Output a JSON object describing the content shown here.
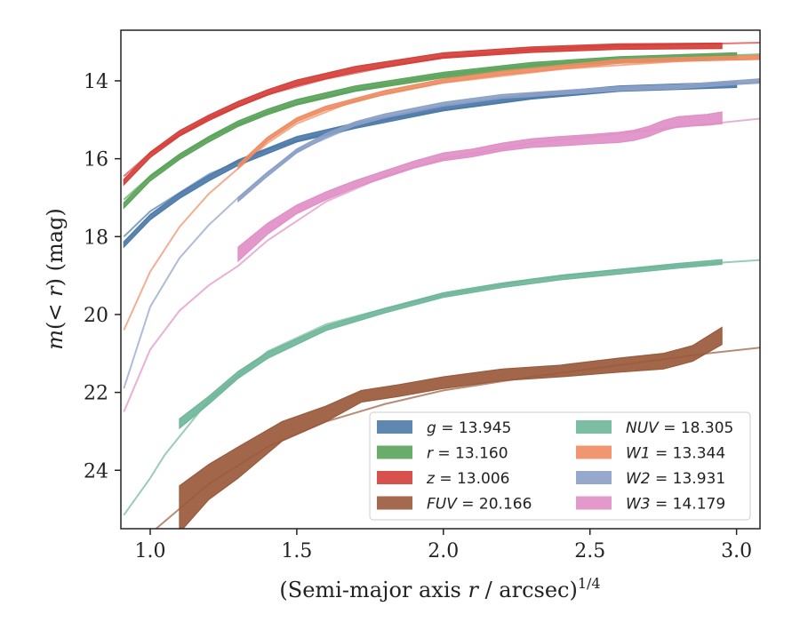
{
  "chart_data": {
    "type": "line",
    "xlabel": "(Semi-major axis r / arcsec)^{1/4}",
    "ylabel": "m(<r) (mag)",
    "xlim": [
      0.9,
      3.08
    ],
    "ylim": [
      25.5,
      12.7
    ],
    "y_inverted": true,
    "x_ticks": [
      "1.0",
      "1.5",
      "2.0",
      "2.5",
      "3.0"
    ],
    "y_ticks": [
      "14",
      "16",
      "18",
      "20",
      "22",
      "24"
    ],
    "legend_position": "lower-right",
    "series": [
      {
        "name": "g = 13.945",
        "italic_name": "g",
        "legend_value": "= 13.945",
        "color": "#4c7aa8",
        "x": [
          0.91,
          1.0,
          1.1,
          1.2,
          1.3,
          1.4,
          1.5,
          1.7,
          2.0,
          2.3,
          2.6,
          3.0
        ],
        "y": [
          18.2,
          17.5,
          16.95,
          16.5,
          16.1,
          15.8,
          15.5,
          15.15,
          14.7,
          14.4,
          14.2,
          14.1
        ],
        "band_half": 0.07,
        "model": {
          "x": [
            0.91,
            1.0,
            1.2,
            1.4,
            1.6,
            1.8,
            2.0,
            2.3,
            2.6,
            3.08
          ],
          "y": [
            18.0,
            17.35,
            16.4,
            15.75,
            15.35,
            15.0,
            14.75,
            14.45,
            14.25,
            14.05
          ]
        }
      },
      {
        "name": "r = 13.160",
        "italic_name": "r",
        "legend_value": "= 13.160",
        "color": "#5aa35a",
        "x": [
          0.91,
          1.0,
          1.1,
          1.2,
          1.3,
          1.4,
          1.5,
          1.7,
          2.0,
          2.3,
          2.6,
          3.0
        ],
        "y": [
          17.2,
          16.5,
          15.95,
          15.5,
          15.1,
          14.8,
          14.55,
          14.2,
          13.85,
          13.6,
          13.45,
          13.35
        ],
        "band_half": 0.07,
        "model": {
          "x": [
            0.91,
            1.0,
            1.2,
            1.4,
            1.6,
            1.8,
            2.0,
            2.3,
            2.6,
            3.08
          ],
          "y": [
            17.05,
            16.45,
            15.45,
            14.8,
            14.4,
            14.1,
            13.85,
            13.6,
            13.45,
            13.32
          ]
        }
      },
      {
        "name": "z = 13.006",
        "italic_name": "z",
        "legend_value": "= 13.006",
        "color": "#d43f3a",
        "x": [
          0.91,
          1.0,
          1.1,
          1.2,
          1.3,
          1.4,
          1.5,
          1.7,
          2.0,
          2.3,
          2.6,
          2.95
        ],
        "y": [
          16.6,
          15.9,
          15.35,
          14.95,
          14.6,
          14.3,
          14.05,
          13.7,
          13.35,
          13.2,
          13.12,
          13.1
        ],
        "band_half": 0.07,
        "model": {
          "x": [
            0.91,
            1.0,
            1.2,
            1.4,
            1.6,
            1.8,
            2.0,
            2.3,
            2.6,
            3.08
          ],
          "y": [
            16.45,
            15.85,
            14.95,
            14.35,
            13.95,
            13.65,
            13.4,
            13.2,
            13.1,
            13.02
          ]
        }
      },
      {
        "name": "FUV = 20.166",
        "italic_name": "FUV",
        "legend_value": "= 20.166",
        "color": "#9a5a3c",
        "x": [
          1.1,
          1.2,
          1.3,
          1.45,
          1.6,
          1.72,
          1.85,
          2.0,
          2.2,
          2.4,
          2.6,
          2.75,
          2.85,
          2.95
        ],
        "y": [
          25.0,
          24.3,
          23.8,
          23.0,
          22.55,
          22.1,
          21.95,
          21.75,
          21.55,
          21.45,
          21.3,
          21.2,
          21.0,
          20.55
        ],
        "band_half": [
          0.6,
          0.45,
          0.4,
          0.25,
          0.2,
          0.15,
          0.15,
          0.15,
          0.15,
          0.15,
          0.18,
          0.2,
          0.2,
          0.22
        ],
        "model": {
          "x": [
            1.02,
            1.2,
            1.4,
            1.6,
            1.8,
            2.0,
            2.3,
            2.6,
            2.9,
            3.08
          ],
          "y": [
            25.5,
            24.35,
            23.4,
            22.75,
            22.3,
            21.95,
            21.6,
            21.3,
            21.0,
            20.85
          ]
        }
      },
      {
        "name": "NUV = 18.305",
        "italic_name": "NUV",
        "legend_value": "= 18.305",
        "color": "#6fb69a",
        "x": [
          1.1,
          1.2,
          1.3,
          1.4,
          1.5,
          1.6,
          1.8,
          2.0,
          2.2,
          2.4,
          2.6,
          2.8,
          2.95
        ],
        "y": [
          22.8,
          22.2,
          21.55,
          21.05,
          20.7,
          20.35,
          19.9,
          19.5,
          19.25,
          19.05,
          18.9,
          18.75,
          18.65
        ],
        "band_half": [
          0.12,
          0.1,
          0.09,
          0.08,
          0.07,
          0.06,
          0.06,
          0.06,
          0.06,
          0.06,
          0.06,
          0.06,
          0.06
        ],
        "model": {
          "x": [
            0.91,
            1.0,
            1.05,
            1.2,
            1.4,
            1.6,
            1.8,
            2.0,
            2.3,
            2.6,
            3.08
          ],
          "y": [
            25.15,
            24.2,
            23.6,
            22.2,
            20.95,
            20.25,
            19.85,
            19.5,
            19.1,
            18.85,
            18.6
          ]
        }
      },
      {
        "name": "W1 = 13.344",
        "italic_name": "W1",
        "legend_value": "= 13.344",
        "color": "#ee8c62",
        "x": [
          1.3,
          1.4,
          1.5,
          1.6,
          1.7,
          1.8,
          2.0,
          2.2,
          2.4,
          2.6,
          2.8,
          3.08
        ],
        "y": [
          16.2,
          15.5,
          15.0,
          14.7,
          14.5,
          14.3,
          14.0,
          13.8,
          13.65,
          13.5,
          13.45,
          13.4
        ],
        "band_half": 0.05,
        "model": {
          "x": [
            0.91,
            1.0,
            1.1,
            1.2,
            1.3,
            1.4,
            1.5,
            1.7,
            2.0,
            2.4,
            2.8,
            3.08
          ],
          "y": [
            20.4,
            18.9,
            17.75,
            16.9,
            16.25,
            15.6,
            15.1,
            14.5,
            14.05,
            13.7,
            13.5,
            13.42
          ]
        }
      },
      {
        "name": "W2 = 13.931",
        "italic_name": "W2",
        "legend_value": "= 13.931",
        "color": "#8b9fc7",
        "x": [
          1.3,
          1.4,
          1.5,
          1.6,
          1.7,
          1.8,
          2.0,
          2.2,
          2.4,
          2.6,
          2.8,
          3.08
        ],
        "y": [
          17.05,
          16.4,
          15.8,
          15.4,
          15.1,
          14.9,
          14.6,
          14.4,
          14.3,
          14.2,
          14.15,
          14.0
        ],
        "band_half": 0.05,
        "model": {
          "x": [
            0.91,
            1.0,
            1.1,
            1.2,
            1.3,
            1.4,
            1.5,
            1.7,
            2.0,
            2.4,
            2.8,
            3.08
          ],
          "y": [
            21.9,
            19.8,
            18.55,
            17.7,
            17.0,
            16.35,
            15.8,
            15.15,
            14.65,
            14.3,
            14.15,
            14.02
          ]
        }
      },
      {
        "name": "W3 = 14.179",
        "italic_name": "W3",
        "legend_value": "= 14.179",
        "color": "#e08fc5",
        "x": [
          1.3,
          1.4,
          1.5,
          1.6,
          1.7,
          1.8,
          1.9,
          2.0,
          2.1,
          2.2,
          2.3,
          2.4,
          2.5,
          2.6,
          2.65,
          2.7,
          2.75,
          2.8,
          2.9,
          2.95
        ],
        "y": [
          18.45,
          17.8,
          17.3,
          16.95,
          16.65,
          16.4,
          16.15,
          15.95,
          15.85,
          15.7,
          15.6,
          15.55,
          15.5,
          15.45,
          15.4,
          15.3,
          15.15,
          15.05,
          15.0,
          14.95
        ],
        "band_half": [
          0.18,
          0.14,
          0.11,
          0.1,
          0.09,
          0.09,
          0.09,
          0.1,
          0.1,
          0.1,
          0.11,
          0.12,
          0.12,
          0.13,
          0.13,
          0.13,
          0.13,
          0.13,
          0.14,
          0.15
        ],
        "model": {
          "x": [
            0.91,
            1.0,
            1.1,
            1.2,
            1.3,
            1.4,
            1.6,
            1.8,
            2.0,
            2.3,
            2.6,
            3.08
          ],
          "y": [
            22.5,
            20.9,
            19.9,
            19.25,
            18.75,
            18.1,
            17.1,
            16.45,
            16.0,
            15.6,
            15.35,
            14.97
          ]
        }
      }
    ]
  }
}
